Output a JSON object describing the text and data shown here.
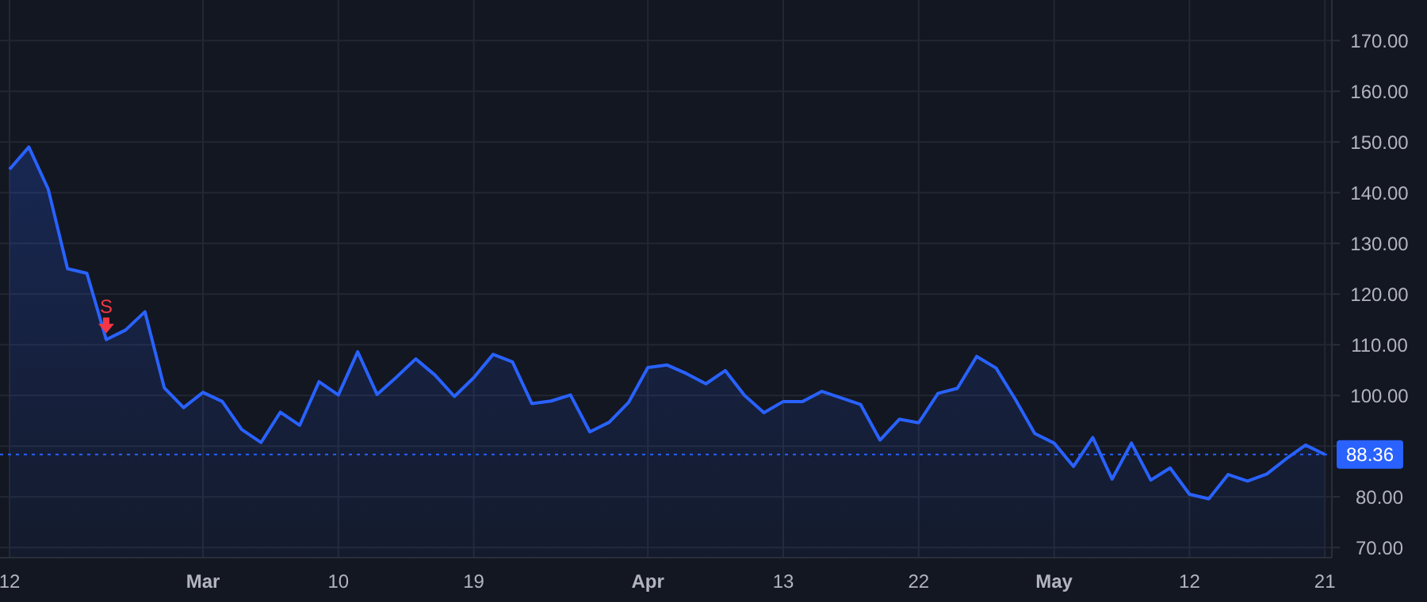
{
  "chart_data": {
    "type": "area",
    "categories": [
      "12",
      null,
      null,
      null,
      null,
      null,
      null,
      null,
      null,
      null,
      "Mar",
      null,
      null,
      null,
      null,
      null,
      null,
      "10",
      null,
      null,
      null,
      null,
      null,
      null,
      "19",
      null,
      null,
      null,
      null,
      null,
      null,
      null,
      null,
      "Apr",
      null,
      null,
      null,
      null,
      null,
      null,
      "13",
      null,
      null,
      null,
      null,
      null,
      null,
      "22",
      null,
      null,
      null,
      null,
      null,
      null,
      "May",
      null,
      null,
      null,
      null,
      null,
      null,
      "12",
      null,
      null,
      null,
      null,
      null,
      null,
      "21"
    ],
    "series": [
      {
        "color": "#2962ff",
        "values": [
          144.6,
          149.0,
          140.7,
          125.0,
          124.1,
          111.0,
          112.9,
          116.5,
          101.5,
          97.6,
          100.6,
          98.8,
          93.3,
          90.7,
          96.7,
          94.1,
          102.7,
          100.1,
          108.6,
          100.2,
          103.6,
          107.2,
          104.0,
          99.8,
          103.5,
          108.1,
          106.6,
          98.4,
          98.9,
          100.1,
          92.8,
          94.7,
          98.6,
          105.5,
          106.0,
          104.3,
          102.3,
          104.9,
          100.0,
          96.6,
          98.8,
          98.8,
          100.8,
          99.5,
          98.2,
          91.2,
          95.3,
          94.6,
          100.4,
          101.4,
          107.7,
          105.4,
          99.2,
          92.5,
          90.6,
          86.0,
          91.7,
          83.5,
          90.6,
          83.3,
          85.7,
          80.5,
          79.6,
          84.4,
          83.1,
          84.5,
          87.5,
          90.2,
          88.36
        ]
      }
    ],
    "ylim": [
      68,
      178
    ],
    "yticks": [
      {
        "value": 70,
        "label": "70.00"
      },
      {
        "value": 80,
        "label": "80.00"
      },
      {
        "value": 90,
        "label": null
      },
      {
        "value": 100,
        "label": "100.00"
      },
      {
        "value": 110,
        "label": "110.00"
      },
      {
        "value": 120,
        "label": "120.00"
      },
      {
        "value": 130,
        "label": "130.00"
      },
      {
        "value": 140,
        "label": "140.00"
      },
      {
        "value": 150,
        "label": "150.00"
      },
      {
        "value": 160,
        "label": "160.00"
      },
      {
        "value": 170,
        "label": "170.00"
      }
    ],
    "grid": true,
    "line_style": "solid",
    "ref_lines": [
      {
        "axis": "y",
        "value": 88.36,
        "label": "88.36",
        "color": "#2962ff",
        "line_style": "dotted"
      }
    ],
    "annotations": [
      {
        "text": "S",
        "y": 111.0
      }
    ]
  }
}
